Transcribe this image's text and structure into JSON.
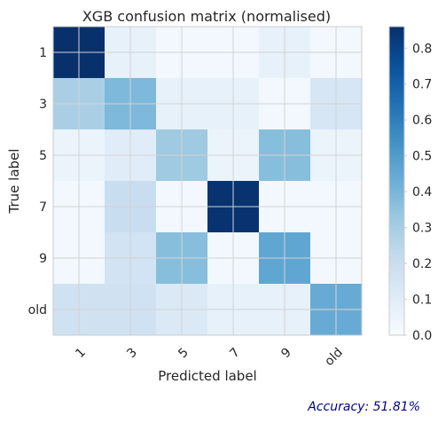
{
  "chart_data": {
    "type": "heatmap",
    "title": "XGB confusion matrix (normalised)",
    "xlabel": "Predicted label",
    "ylabel": "True label",
    "x_categories": [
      "1",
      "3",
      "5",
      "7",
      "9",
      "old"
    ],
    "y_categories": [
      "1",
      "3",
      "5",
      "7",
      "9",
      "old"
    ],
    "values": [
      [
        0.86,
        0.07,
        0.02,
        0.02,
        0.07,
        0.02
      ],
      [
        0.29,
        0.39,
        0.07,
        0.07,
        0.02,
        0.14
      ],
      [
        0.05,
        0.1,
        0.32,
        0.05,
        0.37,
        0.05
      ],
      [
        0.02,
        0.2,
        0.02,
        0.85,
        0.02,
        0.02
      ],
      [
        0.02,
        0.16,
        0.37,
        0.02,
        0.46,
        0.02
      ],
      [
        0.17,
        0.17,
        0.12,
        0.07,
        0.07,
        0.44
      ]
    ],
    "colormap": "Blues",
    "vmin": 0.0,
    "vmax": 0.86,
    "colorbar_ticks": [
      0.0,
      0.1,
      0.2,
      0.3,
      0.4,
      0.5,
      0.6,
      0.7,
      0.8
    ],
    "colorbar_labels": [
      "0.0",
      "0.1",
      "0.2",
      "0.3",
      "0.4",
      "0.5",
      "0.6",
      "0.7",
      "0.8"
    ],
    "grid": true
  },
  "footer": {
    "accuracy_text": "Accuracy: 51.81%",
    "accuracy_color": "#00008b"
  }
}
